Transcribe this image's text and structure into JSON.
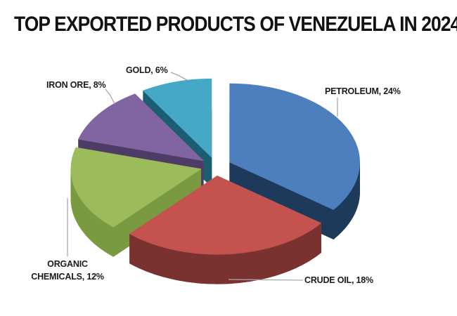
{
  "chart_data": {
    "type": "pie",
    "style": "3d-exploded",
    "title": "TOP EXPORTED PRODUCTS OF VENEZUELA IN 2024",
    "unit": "%",
    "start_angle_deg": 0,
    "clockwise": true,
    "legend_position": "none",
    "background": "#FFFFFF",
    "label_color": "#1A1A1A",
    "leader_line_color": "#A8A8A8",
    "slices": [
      {
        "label": "PETROLEUM",
        "value": 24,
        "display": "PETROLEUM, 24%",
        "color": "#4D7EBE",
        "side_color": "#1E3A5A"
      },
      {
        "label": "CRUDE OIL",
        "value": 18,
        "display": "CRUDE OIL,  18%",
        "color": "#C4524E",
        "side_color": "#7A3231"
      },
      {
        "label": "ORGANIC CHEMICALS",
        "value": 12,
        "display": "ORGANIC\nCHEMICALS, 12%",
        "color": "#9CBB5B",
        "side_color": "#7A9A42"
      },
      {
        "label": "IRON ORE",
        "value": 8,
        "display": "IRON ORE, 8%",
        "color": "#8165A3",
        "side_color": "#4E3C66"
      },
      {
        "label": "GOLD",
        "value": 6,
        "display": "GOLD, 6%",
        "color": "#44A8C6",
        "side_color": "#1D5D72"
      }
    ]
  }
}
